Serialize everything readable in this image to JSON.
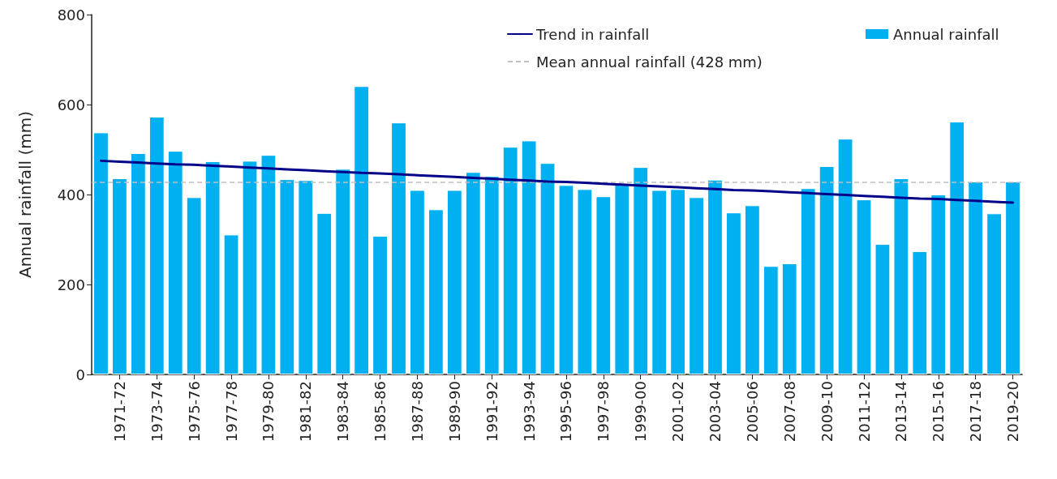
{
  "chart_data": {
    "type": "bar",
    "ylabel": "Annual rainfall (mm)",
    "categories": [
      null,
      "1971-72",
      null,
      "1973-74",
      null,
      "1975-76",
      null,
      "1977-78",
      null,
      "1979-80",
      null,
      "1981-82",
      null,
      "1983-84",
      null,
      "1985-86",
      null,
      "1987-88",
      null,
      "1989-90",
      null,
      "1991-92",
      null,
      "1993-94",
      null,
      "1995-96",
      null,
      "1997-98",
      null,
      "1999-00",
      null,
      "2001-02",
      null,
      "2003-04",
      null,
      "2005-06",
      null,
      "2007-08",
      null,
      "2009-10",
      null,
      "2011-12",
      null,
      "2013-14",
      null,
      "2015-16",
      null,
      "2017-18",
      null,
      "2019-20"
    ],
    "series": [
      {
        "name": "Annual rainfall",
        "color": "#00b0f0",
        "values": [
          538,
          436,
          492,
          573,
          497,
          394,
          474,
          311,
          475,
          488,
          434,
          432,
          359,
          457,
          641,
          308,
          560,
          410,
          367,
          410,
          450,
          441,
          506,
          520,
          470,
          421,
          412,
          396,
          423,
          461,
          410,
          412,
          394,
          433,
          360,
          376,
          241,
          247,
          414,
          463,
          524,
          389,
          290,
          436,
          274,
          400,
          562,
          429,
          358,
          429
        ]
      },
      {
        "name": "Trend in rainfall",
        "type": "line",
        "color": "#00008b",
        "values": [
          475,
          473,
          471,
          469,
          467,
          466,
          464,
          462,
          460,
          458,
          456,
          454,
          452,
          450,
          448,
          447,
          445,
          443,
          441,
          439,
          437,
          435,
          433,
          431,
          429,
          428,
          426,
          424,
          422,
          420,
          418,
          416,
          414,
          412,
          410,
          409,
          407,
          405,
          403,
          401,
          399,
          397,
          395,
          393,
          391,
          390,
          388,
          386,
          384,
          382
        ]
      }
    ],
    "ref_lines": [
      {
        "axis": "y",
        "value": 428,
        "label": "Mean annual rainfall (428 mm)",
        "color": "#c0c0c0",
        "line_style": "dashed"
      }
    ],
    "ylim": [
      0,
      800
    ],
    "yticks": [
      0,
      200,
      400,
      600,
      800
    ],
    "grid": false,
    "legend": "top right",
    "marker": "none",
    "line_style": "solid"
  }
}
